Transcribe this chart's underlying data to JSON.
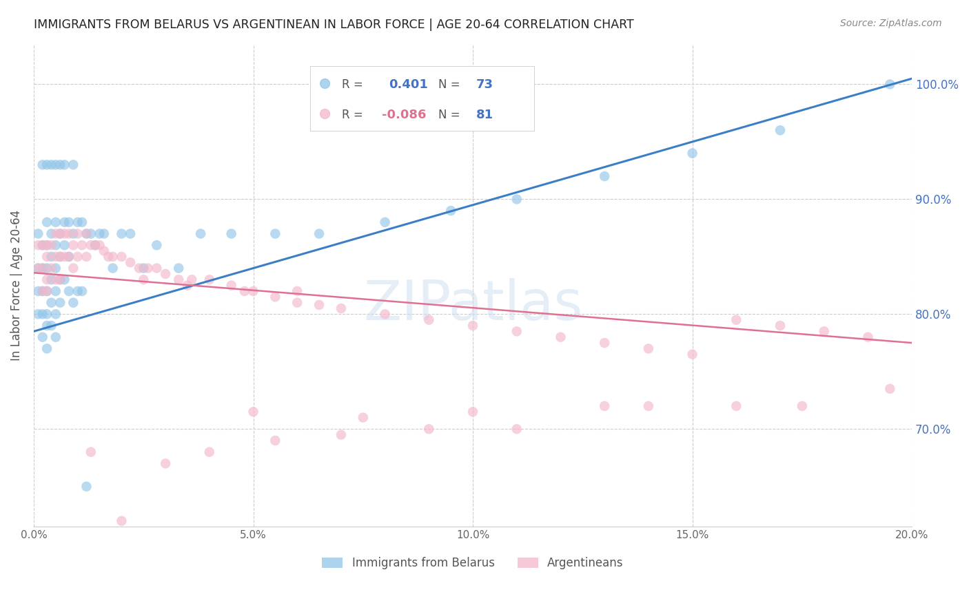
{
  "title": "IMMIGRANTS FROM BELARUS VS ARGENTINEAN IN LABOR FORCE | AGE 20-64 CORRELATION CHART",
  "source": "Source: ZipAtlas.com",
  "ylabel": "In Labor Force | Age 20-64",
  "xlim": [
    0.0,
    0.2
  ],
  "ylim": [
    0.615,
    1.035
  ],
  "yticks": [
    0.7,
    0.8,
    0.9,
    1.0
  ],
  "ytick_labels": [
    "70.0%",
    "80.0%",
    "90.0%",
    "100.0%"
  ],
  "xticks": [
    0.0,
    0.05,
    0.1,
    0.15,
    0.2
  ],
  "xtick_labels": [
    "0.0%",
    "5.0%",
    "10.0%",
    "15.0%",
    "20.0%"
  ],
  "blue_color": "#92c5e8",
  "pink_color": "#f4b8cb",
  "blue_line_color": "#3a7ec6",
  "pink_line_color": "#e07090",
  "grid_color": "#cccccc",
  "background": "#ffffff",
  "right_tick_color": "#4472c4",
  "blue_line_x0": 0.0,
  "blue_line_y0": 0.785,
  "blue_line_x1": 0.2,
  "blue_line_y1": 1.005,
  "pink_line_x0": 0.0,
  "pink_line_y0": 0.836,
  "pink_line_x1": 0.2,
  "pink_line_y1": 0.775,
  "legend_R_blue": "0.401",
  "legend_N_blue": "73",
  "legend_R_pink": "-0.086",
  "legend_N_pink": "81",
  "blue_scatter_x": [
    0.001,
    0.001,
    0.001,
    0.001,
    0.002,
    0.002,
    0.002,
    0.002,
    0.002,
    0.003,
    0.003,
    0.003,
    0.003,
    0.003,
    0.003,
    0.003,
    0.004,
    0.004,
    0.004,
    0.004,
    0.004,
    0.005,
    0.005,
    0.005,
    0.005,
    0.005,
    0.005,
    0.006,
    0.006,
    0.006,
    0.006,
    0.007,
    0.007,
    0.007,
    0.008,
    0.008,
    0.008,
    0.009,
    0.009,
    0.01,
    0.01,
    0.011,
    0.011,
    0.012,
    0.013,
    0.014,
    0.015,
    0.016,
    0.018,
    0.02,
    0.022,
    0.025,
    0.028,
    0.033,
    0.038,
    0.045,
    0.055,
    0.065,
    0.08,
    0.095,
    0.11,
    0.13,
    0.15,
    0.17,
    0.195,
    0.002,
    0.003,
    0.004,
    0.005,
    0.006,
    0.007,
    0.009,
    0.012
  ],
  "blue_scatter_y": [
    0.87,
    0.84,
    0.82,
    0.8,
    0.86,
    0.84,
    0.82,
    0.8,
    0.78,
    0.88,
    0.86,
    0.84,
    0.82,
    0.8,
    0.79,
    0.77,
    0.87,
    0.85,
    0.83,
    0.81,
    0.79,
    0.88,
    0.86,
    0.84,
    0.82,
    0.8,
    0.78,
    0.87,
    0.85,
    0.83,
    0.81,
    0.88,
    0.86,
    0.83,
    0.88,
    0.85,
    0.82,
    0.87,
    0.81,
    0.88,
    0.82,
    0.88,
    0.82,
    0.87,
    0.87,
    0.86,
    0.87,
    0.87,
    0.84,
    0.87,
    0.87,
    0.84,
    0.86,
    0.84,
    0.87,
    0.87,
    0.87,
    0.87,
    0.88,
    0.89,
    0.9,
    0.92,
    0.94,
    0.96,
    1.0,
    0.93,
    0.93,
    0.93,
    0.93,
    0.93,
    0.93,
    0.93,
    0.65
  ],
  "pink_scatter_x": [
    0.001,
    0.001,
    0.002,
    0.002,
    0.002,
    0.003,
    0.003,
    0.003,
    0.003,
    0.004,
    0.004,
    0.005,
    0.005,
    0.005,
    0.006,
    0.006,
    0.006,
    0.007,
    0.007,
    0.008,
    0.008,
    0.009,
    0.009,
    0.01,
    0.01,
    0.011,
    0.012,
    0.012,
    0.013,
    0.014,
    0.015,
    0.016,
    0.017,
    0.018,
    0.02,
    0.022,
    0.024,
    0.026,
    0.028,
    0.03,
    0.033,
    0.036,
    0.04,
    0.045,
    0.05,
    0.055,
    0.06,
    0.065,
    0.07,
    0.08,
    0.09,
    0.1,
    0.11,
    0.12,
    0.13,
    0.14,
    0.15,
    0.16,
    0.17,
    0.18,
    0.19,
    0.05,
    0.075,
    0.1,
    0.13,
    0.16,
    0.013,
    0.02,
    0.03,
    0.04,
    0.055,
    0.07,
    0.09,
    0.11,
    0.14,
    0.175,
    0.195,
    0.025,
    0.035,
    0.048,
    0.06
  ],
  "pink_scatter_y": [
    0.86,
    0.84,
    0.86,
    0.84,
    0.82,
    0.86,
    0.85,
    0.83,
    0.82,
    0.86,
    0.84,
    0.87,
    0.85,
    0.83,
    0.87,
    0.85,
    0.83,
    0.87,
    0.85,
    0.87,
    0.85,
    0.86,
    0.84,
    0.87,
    0.85,
    0.86,
    0.87,
    0.85,
    0.86,
    0.86,
    0.86,
    0.855,
    0.85,
    0.85,
    0.85,
    0.845,
    0.84,
    0.84,
    0.84,
    0.835,
    0.83,
    0.83,
    0.83,
    0.825,
    0.82,
    0.815,
    0.81,
    0.808,
    0.805,
    0.8,
    0.795,
    0.79,
    0.785,
    0.78,
    0.775,
    0.77,
    0.765,
    0.795,
    0.79,
    0.785,
    0.78,
    0.715,
    0.71,
    0.715,
    0.72,
    0.72,
    0.68,
    0.62,
    0.67,
    0.68,
    0.69,
    0.695,
    0.7,
    0.7,
    0.72,
    0.72,
    0.735,
    0.83,
    0.825,
    0.82,
    0.82
  ]
}
